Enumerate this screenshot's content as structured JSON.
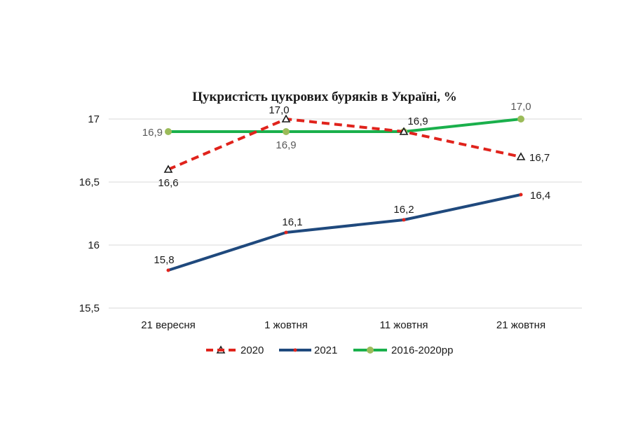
{
  "chart_data": {
    "type": "line",
    "title": "Цукристість цукрових буряків в Україні, %",
    "categories": [
      "21 вересня",
      "1 жовтня",
      "11 жовтня",
      "21 жовтня"
    ],
    "ylim": [
      15.5,
      17
    ],
    "yticks": [
      15.5,
      16,
      16.5,
      17
    ],
    "ytick_labels": [
      "15,5",
      "16",
      "16,5",
      "17"
    ],
    "grid": true,
    "legend_position": "bottom",
    "series": [
      {
        "name": "2020",
        "values": [
          16.6,
          17.0,
          16.9,
          16.7
        ],
        "labels": [
          "16,6",
          "17,0",
          "16,9",
          "16,7"
        ],
        "color": "#e0231c",
        "line_style": "dashed",
        "marker": "triangle-open"
      },
      {
        "name": "2021",
        "values": [
          15.8,
          16.1,
          16.2,
          16.4
        ],
        "labels": [
          "15,8",
          "16,1",
          "16,2",
          "16,4"
        ],
        "color": "#1f497d",
        "line_style": "solid",
        "marker": "dot-red"
      },
      {
        "name": "2016-2020рр",
        "values": [
          16.9,
          16.9,
          16.9,
          17.0
        ],
        "labels": [
          "16,9",
          "16,9",
          "16,9",
          "17,0"
        ],
        "color": "#1ab04c",
        "line_style": "solid",
        "marker": "circle-olive"
      }
    ]
  },
  "colors": {
    "marker_olive": "#9bbb59",
    "marker_dot": "#e0231c",
    "grid": "#d9d9d9",
    "label_gray": "#595959"
  }
}
